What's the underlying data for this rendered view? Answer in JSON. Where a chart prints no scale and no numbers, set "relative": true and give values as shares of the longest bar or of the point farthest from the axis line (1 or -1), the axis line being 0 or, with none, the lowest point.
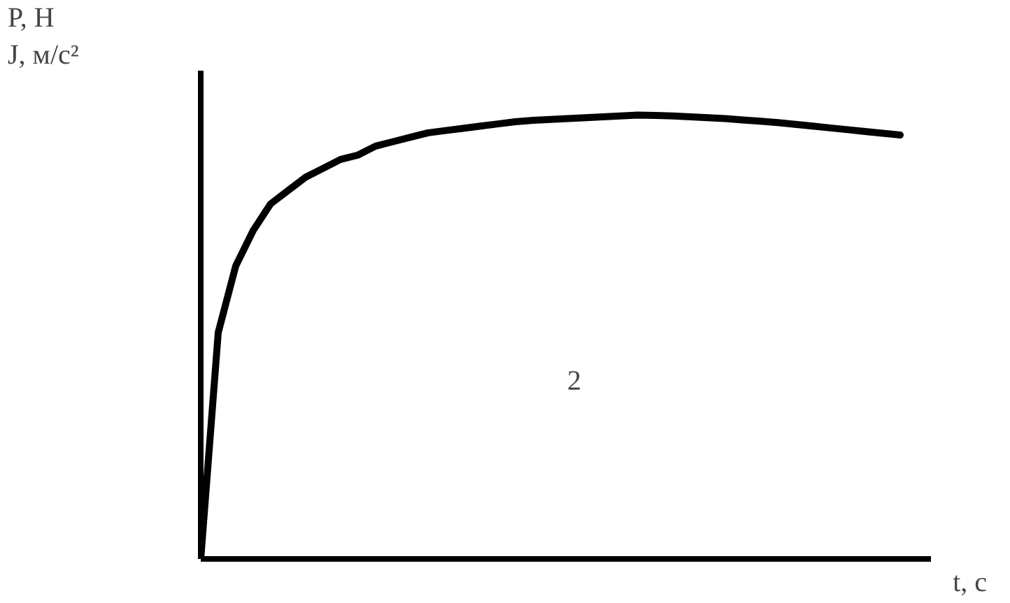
{
  "chart_data": {
    "type": "line",
    "relative": true,
    "xlabel": "t, с",
    "ylabel": "P, Н\nJ, м/с²",
    "annotations": [
      "2"
    ],
    "color": "#000000",
    "grid": false,
    "marker": "none",
    "line_style": "solid",
    "categories": [
      null,
      null,
      null,
      null,
      null,
      null,
      null,
      null,
      null,
      null,
      null,
      null,
      null,
      null,
      null,
      null,
      null,
      null,
      null,
      null,
      null,
      null,
      null,
      null,
      null,
      null,
      null,
      null,
      null,
      null,
      null,
      null,
      null,
      null,
      null,
      null,
      null,
      null,
      null,
      null,
      null
    ],
    "values": [
      0,
      0.51,
      0.66,
      0.74,
      0.8,
      0.83,
      0.86,
      0.88,
      0.9,
      0.91,
      0.93,
      0.94,
      0.95,
      0.96,
      0.965,
      0.97,
      0.975,
      0.98,
      0.985,
      0.988,
      0.99,
      0.992,
      0.994,
      0.996,
      0.998,
      1,
      0.999,
      0.998,
      0.996,
      0.994,
      0.992,
      0.989,
      0.986,
      0.983,
      0.979,
      0.975,
      0.971,
      0.967,
      0.963,
      0.959,
      0.955
    ]
  }
}
